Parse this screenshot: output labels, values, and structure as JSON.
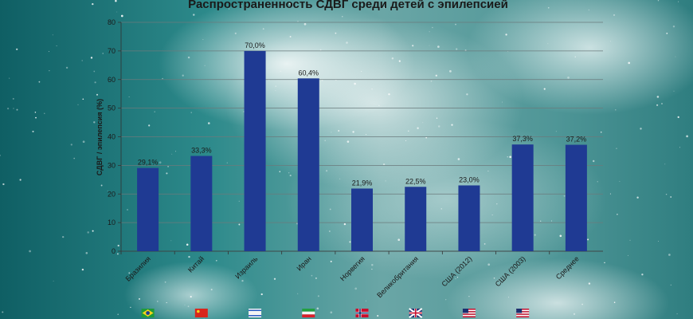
{
  "chart_data": {
    "type": "bar",
    "title": "Распространенность СДВГ среди детей с эпилепсией",
    "ylabel": "СДВГ / эпилепсия (%)",
    "xlabel": "",
    "ylim": [
      0,
      80
    ],
    "yticks": [
      0,
      10,
      20,
      30,
      40,
      50,
      60,
      70,
      80
    ],
    "grid": true,
    "categories": [
      "Бразилия",
      "Китай",
      "Израиль",
      "Иран",
      "Норвегия",
      "Великобритания",
      "США (2012)",
      "США (2003)",
      "Среднее"
    ],
    "values": [
      29.1,
      33.3,
      70.0,
      60.4,
      21.9,
      22.5,
      23.0,
      37.3,
      37.2
    ],
    "value_labels": [
      "29,1%",
      "33,3%",
      "70,0%",
      "60,4%",
      "21,9%",
      "22,5%",
      "23,0%",
      "37,3%",
      "37,2%"
    ],
    "bar_color": "#1f3a93"
  },
  "flags": [
    "brazil-flag-icon",
    "china-flag-icon",
    "israel-flag-icon",
    "iran-flag-icon",
    "norway-flag-icon",
    "uk-flag-icon",
    "usa-flag-icon",
    "usa-flag-icon"
  ]
}
